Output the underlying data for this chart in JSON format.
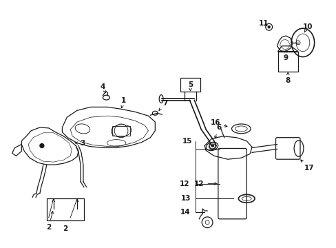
{
  "background_color": "#ffffff",
  "fig_width": 4.89,
  "fig_height": 3.6,
  "dpi": 100,
  "line_color": "#1a1a1a",
  "text_color": "#1a1a1a",
  "font_size": 7.5,
  "font_size_small": 6.5
}
